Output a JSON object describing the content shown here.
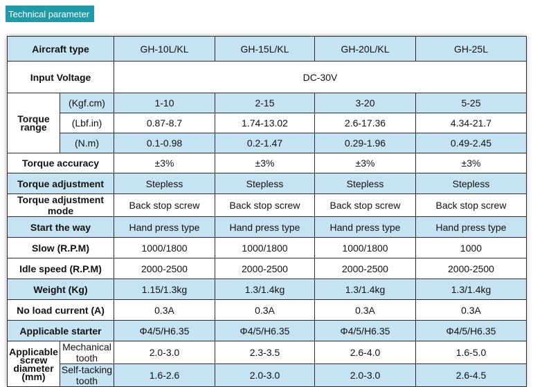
{
  "section_title": "Technical parameter",
  "header": {
    "label": "Aircraft type",
    "models": [
      "GH-10L/KL",
      "GH-15L/KL",
      "GH-20L/KL",
      "GH-25L"
    ]
  },
  "input_voltage": {
    "label": "Input Voltage",
    "value": "DC-30V"
  },
  "torque_range": {
    "label_line1": "Torque",
    "label_line2": "range",
    "rows": [
      {
        "unit": "(Kgf.cm)",
        "values": [
          "1-10",
          "2-15",
          "3-20",
          "5-25"
        ]
      },
      {
        "unit": "(Lbf.in)",
        "values": [
          "0.87-8.7",
          "1.74-13.02",
          "2.6-17.36",
          "4.34-21.7"
        ]
      },
      {
        "unit": "(N.m)",
        "values": [
          "0.1-0.98",
          "0.2-1.47",
          "0.29-1.96",
          "0.49-2.45"
        ]
      }
    ]
  },
  "rows": [
    {
      "label": "Torque accuracy",
      "values": [
        "±3%",
        "±3%",
        "±3%",
        "±3%"
      ]
    },
    {
      "label": "Torque adjustment",
      "values": [
        "Stepless",
        "Stepless",
        "Stepless",
        "Stepless"
      ]
    },
    {
      "label": "Torque adjustment mode",
      "values": [
        "Back stop screw",
        "Back stop screw",
        "Back stop screw",
        "Back stop screw"
      ]
    },
    {
      "label": "Start the way",
      "values": [
        "Hand press type",
        "Hand press type",
        "Hand press type",
        "Hand press type"
      ]
    },
    {
      "label": "Slow (R.P.M)",
      "values": [
        "1000/1800",
        "1000/1800",
        "1000/1800",
        "1000"
      ]
    },
    {
      "label": "Idle speed (R.P.M)",
      "values": [
        "2000-2500",
        "2000-2500",
        "2000-2500",
        "2000-2500"
      ]
    },
    {
      "label": "Weight (Kg)",
      "values": [
        "1.15/1.3kg",
        "1.3/1.4kg",
        "1.3/1.4kg",
        "1.3/1.4kg"
      ]
    },
    {
      "label": "No load current (A)",
      "values": [
        "0.3A",
        "0.3A",
        "0.3A",
        "0.3A"
      ]
    },
    {
      "label": "Applicable starter",
      "values": [
        "Φ4/5/H6.35",
        "Φ4/5/H6.35",
        "Φ4/5/H6.35",
        "Φ4/5/H6.35"
      ]
    }
  ],
  "screw_diameter": {
    "label_lines": [
      "Applicable",
      "screw",
      "diameter",
      "(mm)"
    ],
    "rows": [
      {
        "sub": "Mechanical tooth",
        "values": [
          "2.0-3.0",
          "2.3-3.5",
          "2.6-4.0",
          "1.6-5.0"
        ]
      },
      {
        "sub": "Self-tacking tooth",
        "values": [
          "1.6-2.6",
          "2.0-3.0",
          "2.0-3.0",
          "2.6-4.5"
        ]
      }
    ]
  },
  "colors": {
    "badge": "#1f9aa6",
    "band": "#c5e3f2",
    "border": "#2a2a2a"
  }
}
